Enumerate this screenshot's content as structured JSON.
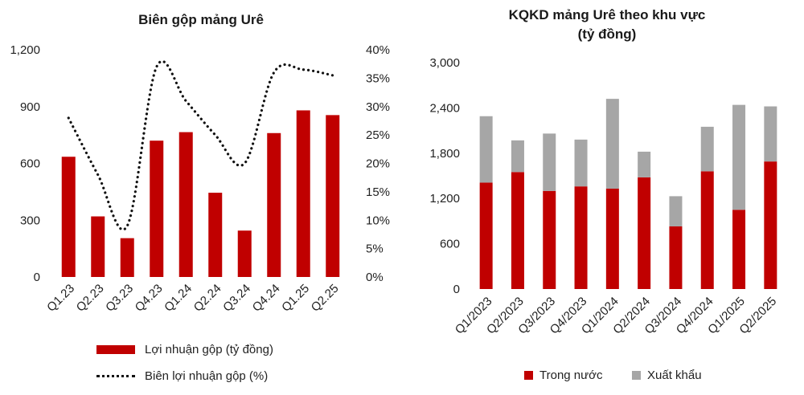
{
  "chart_data": [
    {
      "type": "bar+line",
      "title": "Biên gộp mảng Urê",
      "categories": [
        "Q1.23",
        "Q2.23",
        "Q3.23",
        "Q4.23",
        "Q1.24",
        "Q2.24",
        "Q3.24",
        "Q4.24",
        "Q1.25",
        "Q2.25"
      ],
      "series": [
        {
          "name": "Lợi nhuận gộp (tỷ đồng)",
          "type": "bar",
          "axis": "left",
          "color": "#c00000",
          "values": [
            635,
            320,
            205,
            720,
            765,
            445,
            245,
            760,
            880,
            855
          ]
        },
        {
          "name": "Biên lợi nhuận gộp (%)",
          "type": "line",
          "style": "dotted",
          "axis": "right",
          "color": "#111111",
          "values": [
            28,
            18,
            9,
            37,
            31,
            25,
            20,
            36,
            36.5,
            35.5
          ]
        }
      ],
      "ylim_left": [
        0,
        1200
      ],
      "yticks_left": [
        "0",
        "300",
        "600",
        "900",
        "1,200"
      ],
      "ylim_right": [
        0,
        40
      ],
      "yticks_right": [
        "0%",
        "5%",
        "10%",
        "15%",
        "20%",
        "25%",
        "30%",
        "35%",
        "40%"
      ],
      "legend": "bottom"
    },
    {
      "type": "stacked-bar",
      "title": "KQKD mảng Urê theo khu vực",
      "subtitle": "(tỷ đồng)",
      "categories": [
        "Q1/2023",
        "Q2/2023",
        "Q3/2023",
        "Q4/2023",
        "Q1/2024",
        "Q2/2024",
        "Q3/2024",
        "Q4/2024",
        "Q1/2025",
        "Q2/2025"
      ],
      "series": [
        {
          "name": "Trong nước",
          "color": "#c00000",
          "values": [
            1410,
            1550,
            1300,
            1360,
            1330,
            1480,
            830,
            1560,
            1050,
            1690
          ]
        },
        {
          "name": "Xuất khẩu",
          "color": "#a6a6a6",
          "values": [
            880,
            420,
            760,
            620,
            1190,
            340,
            400,
            590,
            1390,
            730
          ]
        }
      ],
      "ylim": [
        0,
        3000
      ],
      "yticks": [
        "0",
        "600",
        "1,200",
        "1,800",
        "2,400",
        "3,000"
      ],
      "legend": "bottom"
    }
  ]
}
